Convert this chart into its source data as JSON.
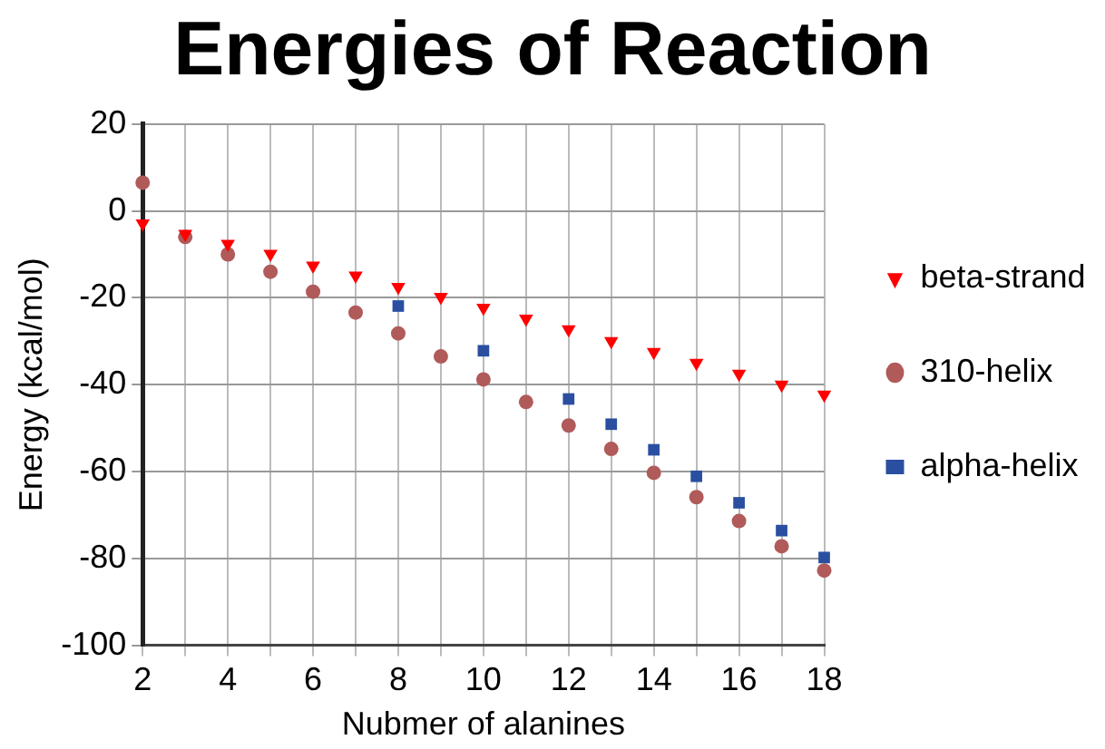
{
  "chart_data": {
    "type": "scatter",
    "title": "Energies of Reaction",
    "xlabel": "Nubmer of alanines",
    "ylabel": "Energy (kcal/mol)",
    "xlim": [
      2,
      18
    ],
    "xticks": [
      2,
      {
        "value": 3,
        "label": null
      },
      4,
      {
        "value": 5,
        "label": null
      },
      6,
      {
        "value": 7,
        "label": null
      },
      8,
      {
        "value": 9,
        "label": null
      },
      10,
      {
        "value": 11,
        "label": null
      },
      12,
      {
        "value": 13,
        "label": null
      },
      14,
      {
        "value": 15,
        "label": null
      },
      16,
      {
        "value": 17,
        "label": null
      },
      18
    ],
    "ylim": [
      -100,
      20
    ],
    "yticks": [
      -100,
      -80,
      -60,
      -40,
      -20,
      0,
      20
    ],
    "grid": true,
    "legend": "right",
    "series": [
      {
        "name": "beta-strand",
        "color": "#ff0000",
        "marker": "triangle",
        "x": [
          2,
          3,
          4,
          5,
          6,
          7,
          8,
          9,
          10,
          11,
          12,
          13,
          14,
          15,
          16,
          17,
          18
        ],
        "values": [
          -2.9,
          -5.3,
          -7.6,
          -9.9,
          -12.6,
          -14.9,
          -17.5,
          -19.8,
          -22.3,
          -24.8,
          -27.3,
          -30,
          -32.5,
          -35,
          -37.5,
          -40,
          -42.3
        ]
      },
      {
        "name": "310-helix",
        "color": "#b05a5a",
        "marker": "circle",
        "x": [
          2,
          3,
          4,
          5,
          6,
          7,
          8,
          9,
          10,
          11,
          12,
          13,
          14,
          15,
          16,
          17,
          18
        ],
        "values": [
          6.5,
          -6,
          -10,
          -14,
          -18.6,
          -23.4,
          -28.2,
          -33.5,
          -38.8,
          -44,
          -49.4,
          -54.8,
          -60.3,
          -65.9,
          -71.4,
          -77.2,
          -82.8
        ]
      },
      {
        "name": "alpha-helix",
        "color": "#2a4fa0",
        "marker": "square",
        "x": [
          8,
          10,
          12,
          13,
          14,
          15,
          16,
          17,
          18
        ],
        "values": [
          -21.9,
          -32.2,
          -43.3,
          -49.1,
          -55,
          -61.1,
          -67.2,
          -73.6,
          -79.8
        ]
      }
    ]
  }
}
